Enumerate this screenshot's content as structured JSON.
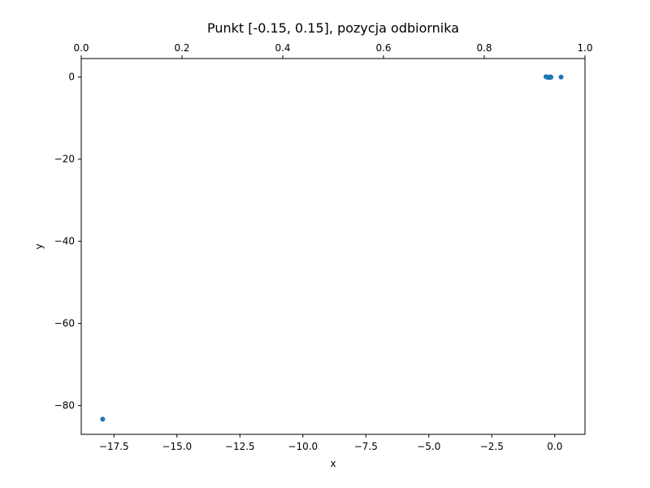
{
  "chart_data": {
    "type": "scatter",
    "title": "Punkt [-0.15, 0.15], pozycja odbiornika",
    "xlabel": "x",
    "ylabel": "y",
    "xlim": [
      -18.8,
      1.2
    ],
    "ylim": [
      -87.0,
      4.5
    ],
    "top_xlim": [
      0.0,
      1.0
    ],
    "x_ticks": [
      -17.5,
      -15.0,
      -12.5,
      -10.0,
      -7.5,
      -5.0,
      -2.5,
      0.0
    ],
    "x_tick_labels": [
      "−17.5",
      "−15.0",
      "−12.5",
      "−10.0",
      "−7.5",
      "−5.0",
      "−2.5",
      "0.0"
    ],
    "y_ticks": [
      0,
      -20,
      -40,
      -60,
      -80
    ],
    "y_tick_labels": [
      "0",
      "−20",
      "−40",
      "−60",
      "−80"
    ],
    "top_ticks": [
      0.0,
      0.2,
      0.4,
      0.6,
      0.8,
      1.0
    ],
    "top_tick_labels": [
      "0.0",
      "0.2",
      "0.4",
      "0.6",
      "0.8",
      "1.0"
    ],
    "grid": false,
    "marker_color": "#1f77b4",
    "points": [
      {
        "x": -17.95,
        "y": -83.3
      },
      {
        "x": -0.35,
        "y": 0.1
      },
      {
        "x": -0.3,
        "y": 0.0
      },
      {
        "x": -0.27,
        "y": -0.1
      },
      {
        "x": -0.22,
        "y": 0.0
      },
      {
        "x": -0.2,
        "y": -0.1
      },
      {
        "x": -0.17,
        "y": 0.05
      },
      {
        "x": -0.15,
        "y": -0.05
      },
      {
        "x": 0.25,
        "y": 0.0
      }
    ]
  }
}
